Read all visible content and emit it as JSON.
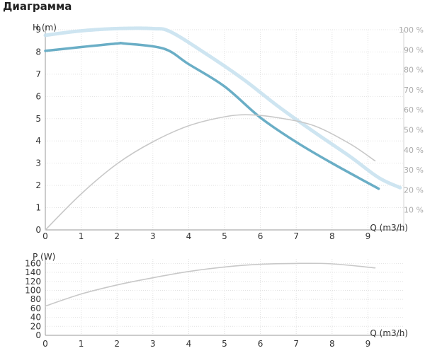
{
  "page": {
    "title": "Диаграмма"
  },
  "colors": {
    "head": "#6aaec6",
    "efficiency_band": "#c9e2ef",
    "aux": "#c8c8c8",
    "grid": "#e2e2e2",
    "axis": "#9a9a9a"
  },
  "chart_data": [
    {
      "type": "line",
      "y_axis_label": "H (m)",
      "x_axis_label": "Q (m3/h)",
      "x_ticks": [
        "0",
        "1",
        "2",
        "3",
        "4",
        "5",
        "6",
        "7",
        "8",
        "9"
      ],
      "y_ticks": [
        "0",
        "1",
        "2",
        "3",
        "4",
        "5",
        "6",
        "7",
        "8",
        "9"
      ],
      "y2_ticks": [
        "10 %",
        "20 %",
        "30 %",
        "40 %",
        "50 %",
        "60 %",
        "70 %",
        "80 %",
        "90 %",
        "100 %"
      ],
      "xlim": [
        0,
        10
      ],
      "ylim": [
        0,
        9
      ],
      "y2lim": [
        0,
        100
      ],
      "grid": true,
      "series": [
        {
          "style": "head",
          "axis": "left",
          "points": [
            [
              0,
              8.05
            ],
            [
              1,
              8.22
            ],
            [
              2,
              8.38
            ],
            [
              2.2,
              8.38
            ],
            [
              3.3,
              8.15
            ],
            [
              4,
              7.45
            ],
            [
              5,
              6.45
            ],
            [
              6,
              5.05
            ],
            [
              7,
              3.95
            ],
            [
              8,
              3.0
            ],
            [
              9.3,
              1.85
            ]
          ]
        },
        {
          "style": "band",
          "axis": "left",
          "points": [
            [
              0,
              8.75
            ],
            [
              1,
              8.95
            ],
            [
              2,
              9.05
            ],
            [
              3,
              9.05
            ],
            [
              3.5,
              8.9
            ],
            [
              4.5,
              7.9
            ],
            [
              5.5,
              6.8
            ],
            [
              6.5,
              5.55
            ],
            [
              7.5,
              4.4
            ],
            [
              8.5,
              3.3
            ],
            [
              9.3,
              2.35
            ],
            [
              9.9,
              1.9
            ]
          ]
        },
        {
          "style": "aux",
          "axis": "right",
          "points": [
            [
              0,
              0
            ],
            [
              1,
              18
            ],
            [
              2,
              33
            ],
            [
              3,
              44
            ],
            [
              4,
              52
            ],
            [
              5,
              56.5
            ],
            [
              5.7,
              57.5
            ],
            [
              6.5,
              56
            ],
            [
              7.5,
              52
            ],
            [
              8.5,
              43
            ],
            [
              9.2,
              34.5
            ]
          ]
        }
      ]
    },
    {
      "type": "line",
      "y_axis_label": "P (W)",
      "x_axis_label": "Q (m3/h)",
      "x_ticks": [
        "0",
        "1",
        "2",
        "3",
        "4",
        "5",
        "6",
        "7",
        "8",
        "9"
      ],
      "y_ticks": [
        "0",
        "20",
        "40",
        "60",
        "80",
        "100",
        "120",
        "140",
        "160"
      ],
      "xlim": [
        0,
        10
      ],
      "ylim": [
        0,
        170
      ],
      "grid": true,
      "series": [
        {
          "style": "aux",
          "axis": "left",
          "points": [
            [
              0,
              65
            ],
            [
              1,
              92
            ],
            [
              2,
              112
            ],
            [
              3,
              128
            ],
            [
              4,
              142
            ],
            [
              5,
              152
            ],
            [
              6,
              158
            ],
            [
              7,
              160
            ],
            [
              8,
              159
            ],
            [
              9.2,
              150
            ]
          ]
        }
      ]
    }
  ]
}
